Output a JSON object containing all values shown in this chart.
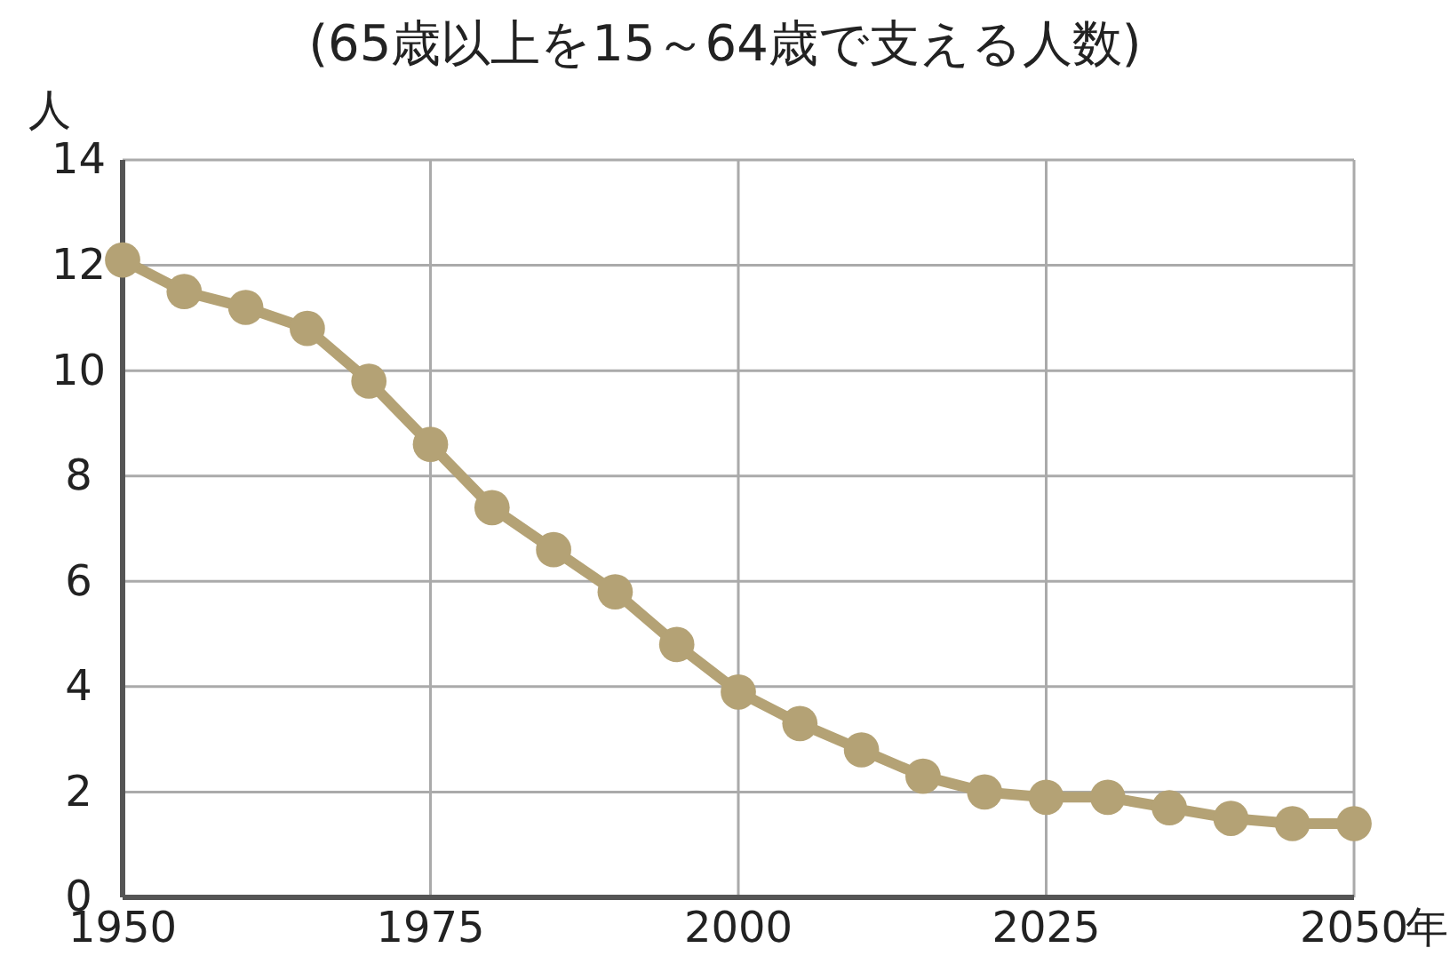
{
  "chart_data": {
    "type": "line",
    "title": "(65歳以上を15～64歳で支える人数)",
    "ylabel": "人",
    "xlabel": "年",
    "x": [
      1950,
      1955,
      1960,
      1965,
      1970,
      1975,
      1980,
      1985,
      1990,
      1995,
      2000,
      2005,
      2010,
      2015,
      2020,
      2025,
      2030,
      2035,
      2040,
      2045,
      2050
    ],
    "series": [
      {
        "color": "#b4a275",
        "values": [
          12.1,
          11.5,
          11.2,
          10.8,
          9.8,
          8.6,
          7.4,
          6.6,
          5.8,
          4.8,
          3.9,
          3.3,
          2.8,
          2.3,
          2.0,
          1.9,
          1.9,
          1.7,
          1.5,
          1.4,
          1.4
        ]
      }
    ],
    "xlim": [
      1950,
      2050
    ],
    "xticks": [
      1950,
      1975,
      2000,
      2025,
      2050
    ],
    "ylim": [
      0,
      14
    ],
    "yticks": [
      0,
      2,
      4,
      6,
      8,
      10,
      12,
      14
    ],
    "grid": true,
    "marker": "circle",
    "line_style": "solid"
  }
}
